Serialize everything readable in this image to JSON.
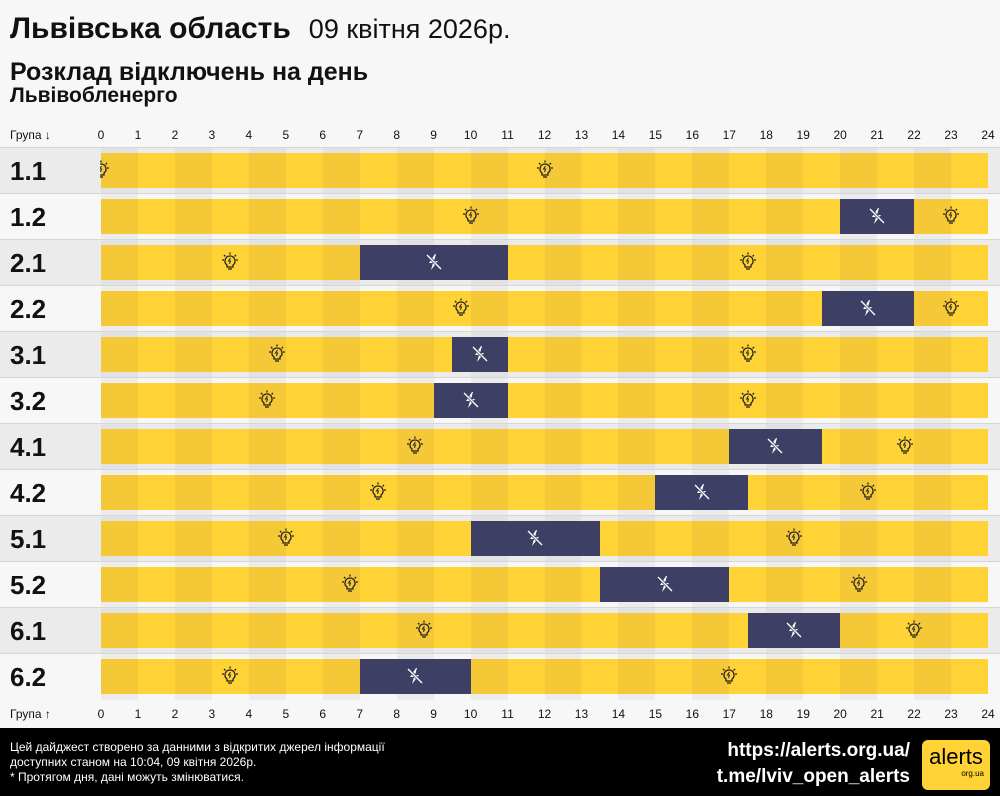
{
  "header": {
    "region": "Львівська область",
    "date": "09 квітня 2026р.",
    "subtitle": "Розклад відключень на день",
    "company": "Львівобленерго"
  },
  "axis": {
    "top_label": "Група ↓",
    "bottom_label": "Група ↑",
    "hours": [
      "0",
      "1",
      "2",
      "3",
      "4",
      "5",
      "6",
      "7",
      "8",
      "9",
      "10",
      "11",
      "12",
      "13",
      "14",
      "15",
      "16",
      "17",
      "18",
      "19",
      "20",
      "21",
      "22",
      "23",
      "24"
    ]
  },
  "colors": {
    "power_on": "#ffd335",
    "power_on_alt": "#f5c838",
    "power_off": "#3d3f64"
  },
  "icons": {
    "power_on": "lightbulb-icon",
    "power_off": "no-power-icon"
  },
  "groups": [
    {
      "name": "1.1",
      "outages": []
    },
    {
      "name": "1.2",
      "outages": [
        [
          20,
          22
        ]
      ]
    },
    {
      "name": "2.1",
      "outages": [
        [
          7,
          11
        ]
      ]
    },
    {
      "name": "2.2",
      "outages": [
        [
          19.5,
          22
        ]
      ]
    },
    {
      "name": "3.1",
      "outages": [
        [
          9.5,
          11
        ]
      ]
    },
    {
      "name": "3.2",
      "outages": [
        [
          9,
          11
        ]
      ]
    },
    {
      "name": "4.1",
      "outages": [
        [
          17,
          19.5
        ]
      ]
    },
    {
      "name": "4.2",
      "outages": [
        [
          15,
          17.5
        ]
      ]
    },
    {
      "name": "5.1",
      "outages": [
        [
          10,
          13.5
        ]
      ]
    },
    {
      "name": "5.2",
      "outages": [
        [
          13.5,
          17
        ]
      ]
    },
    {
      "name": "6.1",
      "outages": [
        [
          17.5,
          20
        ]
      ]
    },
    {
      "name": "6.2",
      "outages": [
        [
          7,
          10
        ]
      ]
    }
  ],
  "footer": {
    "line1": "Цей дайджест створено за данними з відкритих джерел інформації",
    "line2": "доступних станом на 10:04, 09 квітня 2026р.",
    "line3": "* Протягом дня, дані можуть змінюватися.",
    "link1": "https://alerts.org.ua/",
    "link2": "t.me/lviv_open_alerts",
    "logo": "alerts",
    "logo_sub": "org.ua"
  }
}
